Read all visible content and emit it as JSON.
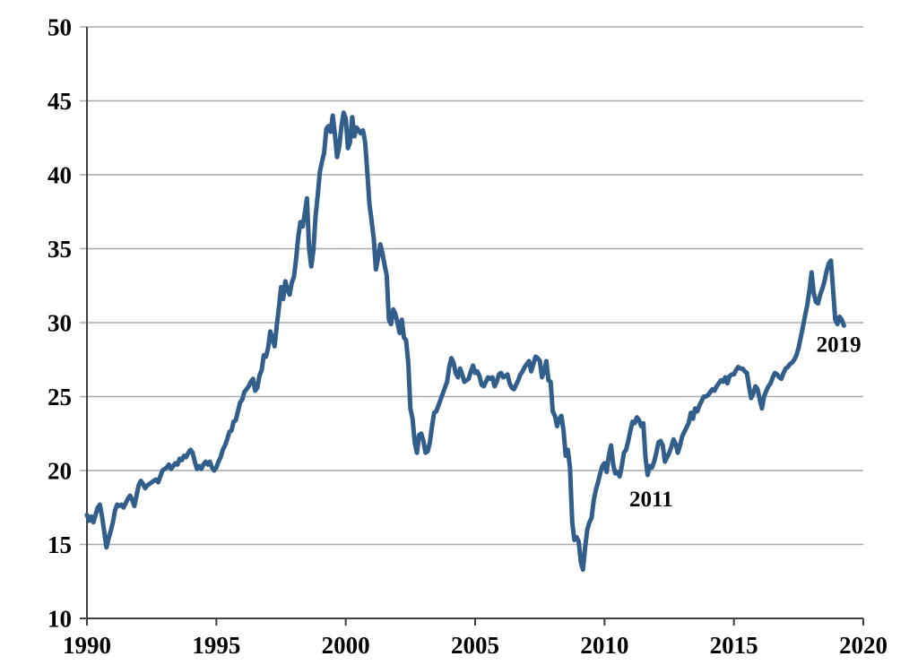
{
  "chart_data": {
    "type": "line",
    "title": "",
    "xlabel": "",
    "ylabel": "",
    "grid": "horizontal-only",
    "legend": "none",
    "x_axis": {
      "min": 1990,
      "max": 2020,
      "tick_interval": 5,
      "ticks": [
        1990,
        1995,
        2000,
        2005,
        2010,
        2015,
        2020
      ]
    },
    "y_axis": {
      "min": 10,
      "max": 50,
      "tick_interval": 5,
      "ticks": [
        10,
        15,
        20,
        25,
        30,
        35,
        40,
        45,
        50
      ]
    },
    "colors": {
      "line": "#325E8C",
      "gridline": "#A9A9A9",
      "axis": "#404040",
      "text": "#000000",
      "background": "#FFFFFF"
    },
    "series": [
      {
        "frequency": "monthly",
        "start": "1990-01",
        "end": "2019-04",
        "data_by_year": [
          {
            "year": 1990,
            "values": [
              17.0,
              16.6,
              16.9,
              16.5,
              17.0,
              17.5,
              17.7,
              16.9,
              15.9,
              14.8,
              15.4,
              15.9
            ]
          },
          {
            "year": 1991,
            "values": [
              16.5,
              17.3,
              17.7,
              17.6,
              17.7,
              17.5,
              17.8,
              18.1,
              18.3,
              18.0,
              17.6,
              18.3
            ]
          },
          {
            "year": 1992,
            "values": [
              19.0,
              19.3,
              19.1,
              18.8,
              19.0,
              19.1,
              19.2,
              19.3,
              19.4,
              19.2,
              19.6,
              20.0
            ]
          },
          {
            "year": 1993,
            "values": [
              20.1,
              20.2,
              20.4,
              20.1,
              20.3,
              20.5,
              20.4,
              20.8,
              20.7,
              21.0,
              20.9,
              21.2
            ]
          },
          {
            "year": 1994,
            "values": [
              21.4,
              21.2,
              20.6,
              20.1,
              20.3,
              20.1,
              20.4,
              20.6,
              20.4,
              20.6,
              20.2,
              20.0
            ]
          },
          {
            "year": 1995,
            "values": [
              20.2,
              20.6,
              20.9,
              21.4,
              21.7,
              22.1,
              22.6,
              22.7,
              23.3,
              23.4,
              24.0,
              24.6
            ]
          },
          {
            "year": 1996,
            "values": [
              24.8,
              25.3,
              25.5,
              25.7,
              26.0,
              26.2,
              25.4,
              25.6,
              26.4,
              26.8,
              27.8,
              27.7
            ]
          },
          {
            "year": 1997,
            "values": [
              28.3,
              29.4,
              28.9,
              28.4,
              29.8,
              31.0,
              32.4,
              31.6,
              32.8,
              32.2,
              31.9,
              32.7
            ]
          },
          {
            "year": 1998,
            "values": [
              33.1,
              34.3,
              35.8,
              36.8,
              36.5,
              37.4,
              38.4,
              35.0,
              33.8,
              34.9,
              37.2,
              38.6
            ]
          },
          {
            "year": 1999,
            "values": [
              40.2,
              40.9,
              41.5,
              43.1,
              43.3,
              42.9,
              44.0,
              42.7,
              41.2,
              41.9,
              43.3,
              44.2
            ]
          },
          {
            "year": 2000,
            "values": [
              43.8,
              41.8,
              42.2,
              43.9,
              42.6,
              43.2,
              43.0,
              42.8,
              43.0,
              42.2,
              40.2,
              38.0
            ]
          },
          {
            "year": 2001,
            "values": [
              36.9,
              35.7,
              33.6,
              34.4,
              35.3,
              34.7,
              33.9,
              33.2,
              30.2,
              29.9,
              30.9,
              30.6
            ]
          },
          {
            "year": 2002,
            "values": [
              30.0,
              29.3,
              30.2,
              29.0,
              28.8,
              27.3,
              24.2,
              23.5,
              21.9,
              21.2,
              22.4,
              22.5
            ]
          },
          {
            "year": 2003,
            "values": [
              22.0,
              21.2,
              21.3,
              21.9,
              23.0,
              23.9,
              24.0,
              24.4,
              24.8,
              25.2,
              25.6,
              26.0
            ]
          },
          {
            "year": 2004,
            "values": [
              27.0,
              27.6,
              27.3,
              26.6,
              26.3,
              26.9,
              26.5,
              26.0,
              26.1,
              26.2,
              26.7,
              27.1
            ]
          },
          {
            "year": 2005,
            "values": [
              26.6,
              26.7,
              26.4,
              25.8,
              25.7,
              26.0,
              26.3,
              26.2,
              26.3,
              25.7,
              26.0,
              26.5
            ]
          },
          {
            "year": 2006,
            "values": [
              26.6,
              26.3,
              26.4,
              26.5,
              25.9,
              25.6,
              25.5,
              25.8,
              26.1,
              26.5,
              26.7,
              27.0
            ]
          },
          {
            "year": 2007,
            "values": [
              27.2,
              27.4,
              26.7,
              27.2,
              27.7,
              27.6,
              27.4,
              26.3,
              26.7,
              27.4,
              26.1,
              26.0
            ]
          },
          {
            "year": 2008,
            "values": [
              24.0,
              23.7,
              23.0,
              23.5,
              23.7,
              22.7,
              21.0,
              21.4,
              20.2,
              16.5,
              15.3,
              15.5
            ]
          },
          {
            "year": 2009,
            "values": [
              15.2,
              13.8,
              13.3,
              14.8,
              16.0,
              16.5,
              16.8,
              18.0,
              18.7,
              19.2,
              19.8,
              20.3
            ]
          },
          {
            "year": 2010,
            "values": [
              20.5,
              19.9,
              21.0,
              21.7,
              20.4,
              19.8,
              19.9,
              19.6,
              20.3,
              21.2,
              21.4,
              22.0
            ]
          },
          {
            "year": 2011,
            "values": [
              22.7,
              23.3,
              23.2,
              23.6,
              23.4,
              23.0,
              23.2,
              20.9,
              19.7,
              20.3,
              20.2,
              20.6
            ]
          },
          {
            "year": 2012,
            "values": [
              21.2,
              21.9,
              22.0,
              21.7,
              20.6,
              20.9,
              21.2,
              21.6,
              22.1,
              21.8,
              21.2,
              21.7
            ]
          },
          {
            "year": 2013,
            "values": [
              22.3,
              22.6,
              22.9,
              23.2,
              23.9,
              23.5,
              24.2,
              24.0,
              24.4,
              24.7,
              25.0,
              25.0
            ]
          },
          {
            "year": 2014,
            "values": [
              25.1,
              25.3,
              25.5,
              25.4,
              25.7,
              25.9,
              26.1,
              26.0,
              26.3,
              25.9,
              26.4,
              26.5
            ]
          },
          {
            "year": 2015,
            "values": [
              26.5,
              26.8,
              27.0,
              26.9,
              26.9,
              26.7,
              26.6,
              25.7,
              24.9,
              25.2,
              25.7,
              25.5
            ]
          },
          {
            "year": 2016,
            "values": [
              24.8,
              24.2,
              25.0,
              25.4,
              25.7,
              25.9,
              26.3,
              26.6,
              26.5,
              26.3,
              26.2,
              26.6
            ]
          },
          {
            "year": 2017,
            "values": [
              26.9,
              27.0,
              27.2,
              27.3,
              27.5,
              27.8,
              28.3,
              29.0,
              29.7,
              30.5,
              31.2,
              32.2
            ]
          },
          {
            "year": 2018,
            "values": [
              33.4,
              32.0,
              31.4,
              31.3,
              31.9,
              32.3,
              32.8,
              33.5,
              34.0,
              34.2,
              32.2,
              30.2
            ]
          },
          {
            "year": 2019,
            "values": [
              29.9,
              30.4,
              30.2,
              29.8
            ]
          }
        ]
      }
    ],
    "annotations": [
      {
        "label": "2011",
        "x": 2011.8,
        "y": 18.1
      },
      {
        "label": "2019",
        "x": 2019.05,
        "y": 28.55
      }
    ]
  }
}
